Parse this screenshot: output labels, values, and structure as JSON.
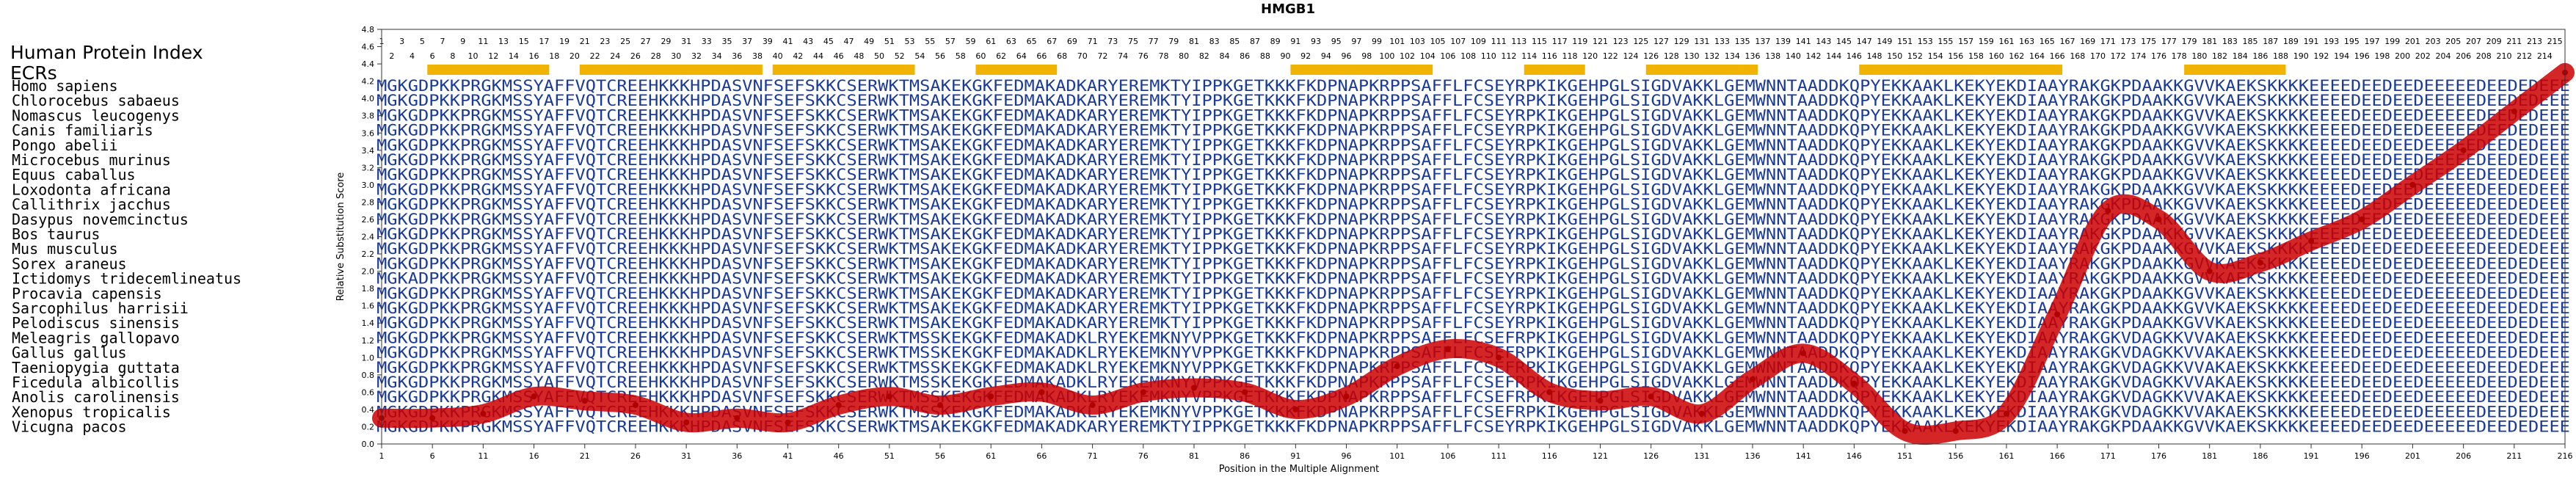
{
  "chart_data": {
    "type": "line",
    "title": "HMGB1",
    "xlabel": "Position in the Multiple Alignment",
    "ylabel": "Relative Substitution Score",
    "xlim": [
      1,
      216
    ],
    "ylim": [
      0,
      4.8
    ],
    "x_ticks": [
      1,
      6,
      11,
      16,
      21,
      26,
      31,
      36,
      41,
      46,
      51,
      56,
      61,
      66,
      71,
      76,
      81,
      86,
      91,
      96,
      101,
      106,
      111,
      116,
      121,
      126,
      131,
      136,
      141,
      146,
      151,
      156,
      161,
      166,
      171,
      176,
      181,
      186,
      191,
      196,
      201,
      206,
      211,
      216
    ],
    "y_ticks": [
      "0.0",
      "0.2",
      "0.4",
      "0.6",
      "0.8",
      "1.0",
      "1.2",
      "1.4",
      "1.6",
      "1.8",
      "2.0",
      "2.2",
      "2.4",
      "2.6",
      "2.8",
      "3.0",
      "3.2",
      "3.4",
      "3.6",
      "3.8",
      "4.0",
      "4.2",
      "4.4",
      "4.6",
      "4.8"
    ],
    "index_label": "Human Protein Index",
    "index_start": 1,
    "index_end": 215,
    "ecr_label": "ECRs",
    "ecrs": [
      [
        6,
        17
      ],
      [
        21,
        38
      ],
      [
        40,
        53
      ],
      [
        60,
        67
      ],
      [
        91,
        104
      ],
      [
        114,
        119
      ],
      [
        126,
        136
      ],
      [
        147,
        166
      ],
      [
        179,
        188
      ]
    ],
    "species": [
      "Homo sapiens",
      "Chlorocebus sabaeus",
      "Nomascus leucogenys",
      "Canis familiaris",
      "Pongo abelii",
      "Microcebus murinus",
      "Equus caballus",
      "Loxodonta africana",
      "Callithrix jacchus",
      "Dasypus novemcinctus",
      "Bos taurus",
      "Mus musculus",
      "Sorex araneus",
      "Ictidomys tridecemlineatus",
      "Procavia capensis",
      "Sarcophilus harrisii",
      "Pelodiscus sinensis",
      "Meleagris gallopavo",
      "Gallus gallus",
      "Taeniopygia guttata",
      "Ficedula albicollis",
      "Anolis carolinensis",
      "Xenopus tropicalis",
      "Vicugna pacos"
    ],
    "sequences": [
      "MGKGDPKKPRGKMSSYAFFVQTCREEHKKKHPDASVNFSEFSKKCSERWKTMSAKEKGKFEDMAKADKARYEREMKTYIPPKGETKKKFKDPNAPKRPPSAFFLFCSEYRPKIKGEHPGLSIGDVAKKLGEMWNNTAADDKQPYEKKAAKLKEKYEKDIAAYRAKGKPDAAKKGVVKAEKSKKKKEEEEDEEDEEDEEEEEDEEDEDEEE",
      "MGKGDPKKPRGKMSSYAFFVQTCREEHKKKHPDASVNFSEFSKKCSERWKTMSAKEKGKFEDMAKADKARYEREMKTYIPPKGETKKKFKDPNAPKRPPSAFFLFCSEYRPKIKGEHPGLSIGDVAKKLGEMWNNTAADDKQPYEKKAAKLKEKYEKDIAAYRAKGKPDAAKKGVVKAEKSKKKKEEEEDEEDEEDEEEEEDEEDEDEEE",
      "MGKGDPKKPRGKMSSYAFFVQTCREEHKKKHPDASVNFSEFSKKCSERWKTMSAKEKGKFEDMAKADKARYEREMKTYIPPKGETKKKFKDPNAPKRPPSAFFLFCSEYRPKIKGEHPGLSIGDVAKKLGEMWNNTAADDKQPYEKKAAKLKEKYEKDIAAYRAKGKPDAAKKGVVKAEKSKKKKEEEEDEEDEEDEEEEEDEEDEDEEE",
      "MGKGDPKKPRGKMSSYAFFVQTCREEHKKKHPDASVNFSEFSKKCSERWKTMSAKEKGKFEDMAKADKARYEREMKTYIPPKGETKKKFKDPNAPKRPPSAFFLFCSEYRPKIKGEHPGLSIGDVAKKLGEMWNNTAADDKQPYEKKAAKLKEKYEKDIAAYRAKGKPDAAKKGVVKAEKSKKKKEEEEDEEDEEDEEEEEDEEDEDEEE",
      "MGKGDPKKPRGKMSSYAFFVQTCREEHKKKHPDASVNFSEFSKKCSERWKTMSAKEKGKFEDMAKADKARYEREMKTYIPPKGETKKKFKDPNAPKRPPSAFFLFCSEYRPKIKGEHPGLSIGDVAKKLGEMWNNTAADDKQPYEKKAAKLKEKYEKDIAAYRAKGKPDAAKKGVVKAEKSKKKKEEEEDEEDEEDEEEEEDEEDEDEEE",
      "MGKGDPKKPRGKMSSYAFFVQTCREEHKKKHPDASVNFSEFSKKCSERWKTMSAKEKGKFEDMAKADKARYEREMKTYIPPKGETKKKFKDPNAPKRPPSAFFLFCSEYRPKIKGEHPGLSIGDVAKKLGEMWNNTAADDKQPYEKKAAKLKEKYEKDIAAYRAKGKPDAAKKGVVKAEKSKKKKEEEEDEEDEEDEEEEEDEEDEDEEE",
      "MGKGDPKKPRGKMSSYAFFVQTCREEHKKKHPDASVNFSEFSKKCSERWKTMSAKEKGKFEDMAKADKARYEREMKTYIPPKGETKKKFKDPNAPKRPPSAFFLFCSEYRPKIKGEHPGLSIGDVAKKLGEMWNNTAADDKQPYEKKAAKLKEKYEKDIAAYRAKGKPDAAKKGVVKAEKSKKKKEEEEDEEDEEDEEEEEDEEDEDEEE",
      "MGKGDPKKPRGKMSSYAFFVQTCREEHKKKHPDASVNFSEFSKKCSERWKTMSAKEKGKFEDMAKADKARYEREMKTYIPPKGETKKKFKDPNAPKRPPSAFFLFCSEYRPKIKGEHPGLSIGDVAKKLGEMWNNTAADDKQPYEKKAAKLKEKYEKDIAAYRAKGKPDAAKKGVVKAEKSKKKKEEEEDEEDEEDEEEEEDEEDEDEEE",
      "MGKGDPKKPRGKMSSYAFFVQTCREEHKKKHPDASVNFSEFSKKCSERWKTMSAKEKGKFEDMAKADKARYEREMKTYIPPKGETKKKFKDPNAPKRPPSAFFLFCSEYRPKIKGEHPGLSIGDVAKKLGEMWNNTAADDKQPYEKKAAKLKEKYEKDIAAYRAKGKPDAAKKGVVKAEKSKKKKEEEEDEEDEEDEEEEEDEEDEDEEE",
      "MGKGDPKKPRGKMSSYAFFVQTCREEHKKKHPDASVNFSEFSKKCSERWKTMSAKEKGKFEDMAKADKARYEREMKTYIPPKGETKKKFKDPNAPKRPPSAFFLFCSEYRPKIKGEHPGLSIGDVAKKLGEMWNNTAADDKQPYEKKAAKLKEKYEKDIAAYRAKGKPDAAKKGVVKAEKSKKKKEEEEDEEDEEDEEEEEDEEDEDEEE",
      "MGKGDPKKPRGKMSSYAFFVQTCREEHKKKHPDASVNFSEFSKKCSERWKTMSAKEKGKFEDMAKADKARYEREMKTYIPPKGETKKKFKDPNAPKRPPSAFFLFCSEYRPKIKGEHPGLSIGDVAKKLGEMWNNTAADDKQPYEKKAAKLKEKYEKDIAAYRAKGKPDAAKKGVVKAEKSKKKKEEEEDEEDEEDEEEEEDEEDEDEEE",
      "MGKGDPKKPRGKMSSYAFFVQTCREEHKKKHPDASVNFSEFSKKCSERWKTMSAKEKGKFEDMAKADKARYEREMKTYIPPKGETKKKFKDPNAPKRPPSAFFLFCSEYRPKIKGEHPGLSIGDVAKKLGEMWNNTAADDKQPYEKKAAKLKEKYEKDIAAYRAKGKPDAAKKGVVKAEKSKKKKEEEEDEEDEEDEEEEEDEEDEDEEE",
      "MGKGDPKKPRGKMSSYAFFVQTCREEHKKKHPDASVNFSEFSKKCSERWKTMSAKEKGKFEDMAKADKARYEREMKTYIPPKGETKKKFKDPNAPKRPPSAFFLFCSEYRPKIKGEHPGLSIGDVAKKLGEMWNNTAADDKQPYEKKAAKLKEKYEKDIAAYRAKGKPDAAKKGVVKAEKSKKKKEEEEDEEDEEDEEEEEDEEDEDEEE",
      "MGKADPKKPRGKMSSYAFFVQTCREEHKKKHPDASVNFSEFSKKCSERWKTMSAKEKGKFEDMAKADKARYEREMKTYIPPKGETKKKFKDPNAPKRPPSAFFLFCSEYRPKIKGEHPGLSIGDVAKKLGEMWNNTAADDKQPYEKKAAKLKEKYEKDIAAYRAKGKPDAAKKGVVKAEKSKKKKEEEEDEEDEEDEEEEEDEEDEDEEE",
      "MGKGDPKKPRGKMSSYAFFVQTCREEHKKKHPDASVNFSEFSKKCSERWKTMSAKEKGKFEDMAKADKARYEREMKTYIPPKGETKKKFKDPNAPKRPPSAFFLFCSEYRPKIKGEHPGLSIGDVAKKLGEMWNNTAADDKQPYEKKAAKLKEKYEKDIAAYRAKGKPDAAKKGVVKAEKSKKKKEEEEDEEDEEDEEEEEDEEDEDEEE",
      "MGKGDPKKPRGKMSSYAFFVQTCREEHKKKHPDASVNFSEFSKKCSERWKTMSAKEKGKFEDMAKADKARYEREMKTYIPPKGETKKKFKDPNAPKRPPSAFFLFCSEYRPKIKGEHPGLSIGDVAKKLGEMWNNTAADDKQPYEKKAAKLKEKYEKDIAAYRAKGKPDAAKKGVVKAEKSKKKKEEEEDEEDEEDEEEEEDEEDEDEEE",
      "MGKGDPKKPRGKMSSYAFFVQTCREEHKKKHPDASVNFSEFSKKCSERWKTMSAKEKGKFEDMAKADKARYEREMKTYIPPKGETKKKFKDPNAPKRPPSAFFLFCSEYRPKIKGEHPGLSIGDVAKKLGEMWNNTAADDKQPYEKKAAKLKEKYEKDIAAYRAKGKPDAAKKGVVKAEKSKKKKEEEEDEEDEEDEEEEEDEEDEDEEE",
      "MGKGDPKKPRGKMSSYAFFVQTCREEHKKKHPDASVNFSEFSKKCSERWKTMSSKEKGKFEDMAKADKLRYEKEMKNYVPPKGETKKKFKDPNAPKRPPSAFFLFCSEFRPKIKGEHPGLSIGDVAKKLGEMWNNTAADDKQPYEKKAAKLKEKYEKDIAAYRAKGKVDAGKKVVAKAEKSKKKKEEEEDEEDEEDEEEEEDEEDEDEEE",
      "MGKGDPKKPRGKMSSYAFFVQTCREEHKKKHPDASVNFSEFSKKCSERWKTMSSKEKGKFEDMAKADKLRYEKEMKNYVPPKGETKKKFKDPNAPKRPPSAFFLFCSEFRPKIKGEHPGLSIGDVAKKLGEMWNNTAADDKQPYEKKAAKLKEKYEKDIAAYRAKGKVDAGKKVVAKAEKSKKKKEEEEDEEDEEDEEEEEDEEDEDEEE",
      "MGKGDPKKPRGKMSSYAFFVQTCREEHKKKHPDASVNFSEFSKKCSERWKTMSSKEKGKFEDMAKADKLRYEKEMKNYVPPKGETKKKFKDPNAPKRPPSAFFLFCSEFRPKIKGEHPGLSIGDVAKKLGEMWNNTAADDKQPYEKKAAKLKEKYEKDIAAYRAKGKVDAGKKVVAKAEKSKKKKEEEEDEEDEEDEEEEEDEEDEDEEE",
      "MGKGDPKKPRGKMSSYAFFVQTCREEHKKKHPDASVNFSEFSKKCSERWKTMSSKEKGKFEDMAKADKLRYEKEMKNYVPPKGETKKKFKDPNAPKRPPSAFFLFCSEFRPKIKGEHPGLSIGDVAKKLGEMWNNTAADDKQPYEKKAAKLKEKYEKDIAAYRAKGKVDAGKKVVAKAEKSKKKKEEEEDEEDEEDEEEEEDEEDEDEEE",
      "MGKGDPKKPRGKMSSYAFFVQTCREEHKKKHPDASVNFSEFSKKCSERWKTMSSKEKGKFEDMAKADKLRYEKEMKNYVPPKGETKKKFKDPNAPKRPPSAFFLFCSEFRPKIKGEHPGLSIGDVAKKLGEMWNNTAADDKQPYEKKAAKLKEKYEKDIAAYRAKGKVDAGKKVVAKAEKSKKKKEEEEDEEDEEDEEEEEDEEDEDEEE",
      "MGKGDPKKPRGKMSSYAFFVQTCREEHKKKHPDASVNFSEFSKKCSERWKTMSSKEKGKFEDMAKADKLRYEKEMKNYVPPKGETKKKFKDPNAPKRPPSAFFLFCSEFRPKIKGEHPGLSIGDVAKKLGEMWNNTAADDKQPYEKKAAKLKEKYEKDIAAYRAKGKVDAGKKVVAKAEKSKKKKEEEEDEEDEEDEEEEEDEEDEDEEE",
      "MGKGDPKKPRGKMSSYAFFVQTCREEHKKKHPDASVNFSEFSKKCSERWKTMSAKEKGKFEDMAKADKARYEREMKTYIPPKGETKKKFKDPNAPKRPPSAFFLFCSEYRPKIKGEHPGLSIGDVAKKLGEMWNNTAADDKQPYEKKAAKLKEKYEKDIAAYRAKGKPDAAKKGVVKAEKSKKKKEEEEDEEDEEDEEEEEDEEDEDEEE"
    ],
    "series": [
      {
        "x": [
          1,
          6,
          11,
          16,
          21,
          26,
          31,
          36,
          41,
          46,
          51,
          56,
          61,
          66,
          71,
          76,
          81,
          86,
          91,
          96,
          101,
          106,
          111,
          116,
          121,
          126,
          131,
          136,
          141,
          146,
          151,
          156,
          161,
          166,
          171,
          176,
          181,
          186,
          191,
          196,
          201,
          206,
          211,
          216
        ],
        "values": [
          0.3,
          0.3,
          0.35,
          0.55,
          0.5,
          0.45,
          0.25,
          0.3,
          0.25,
          0.45,
          0.55,
          0.45,
          0.55,
          0.6,
          0.45,
          0.6,
          0.65,
          0.6,
          0.4,
          0.55,
          0.9,
          1.1,
          1.0,
          0.6,
          0.5,
          0.55,
          0.35,
          0.75,
          1.05,
          0.7,
          0.15,
          0.15,
          0.35,
          1.5,
          2.7,
          2.6,
          2.0,
          2.1,
          2.35,
          2.6,
          3.0,
          3.4,
          3.85,
          4.3
        ]
      }
    ],
    "colors": {
      "line": "#cc0000",
      "sequence_text": "#1a3a9a",
      "ecr_bar": "#f0b400",
      "title": "#000000"
    }
  }
}
